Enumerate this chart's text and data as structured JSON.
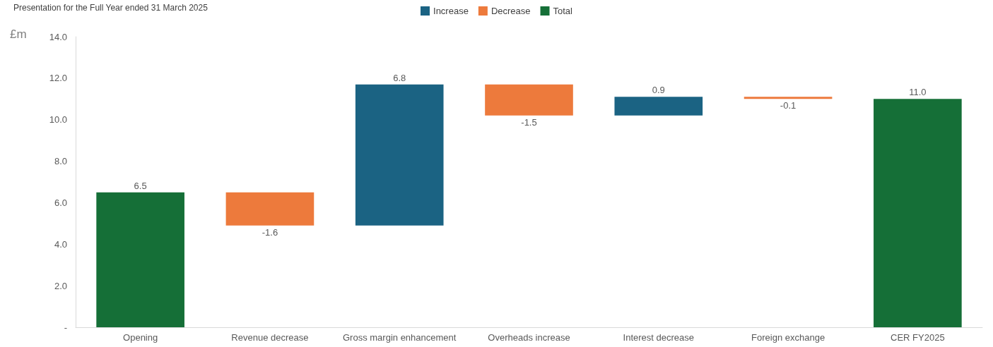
{
  "chart_data": {
    "type": "bar",
    "title": "Presentation for the Full Year ended 31 March 2025",
    "ylabel": "£m",
    "categories": [
      "Opening",
      "Revenue decrease",
      "Gross margin enhancement",
      "Overheads increase",
      "Interest decrease",
      "Foreign exchange",
      "CER FY2025"
    ],
    "series": [
      {
        "name": "Increase",
        "color": "#1b6383",
        "values": [
          null,
          null,
          6.8,
          null,
          0.9,
          null,
          null
        ],
        "base": [
          null,
          null,
          4.9,
          null,
          10.2,
          null,
          null
        ],
        "value_labels": [
          null,
          null,
          "6.8",
          null,
          "0.9",
          null,
          null
        ]
      },
      {
        "name": "Decrease",
        "color": "#ed7a3c",
        "values": [
          null,
          -1.6,
          null,
          -1.5,
          null,
          -0.1,
          null
        ],
        "base": [
          null,
          6.5,
          null,
          11.7,
          null,
          11.1,
          null
        ],
        "value_labels": [
          null,
          "-1.6",
          null,
          "-1.5",
          null,
          "-0.1",
          null
        ]
      },
      {
        "name": "Total",
        "color": "#156f37",
        "values": [
          6.5,
          null,
          null,
          null,
          null,
          null,
          11.0
        ],
        "base": [
          0,
          null,
          null,
          null,
          null,
          null,
          0
        ],
        "value_labels": [
          "6.5",
          null,
          null,
          null,
          null,
          null,
          "11.0"
        ]
      }
    ],
    "ylim": [
      0,
      14
    ],
    "yticks": [
      {
        "value": 0,
        "label": "-"
      },
      {
        "value": 2,
        "label": "2.0"
      },
      {
        "value": 4,
        "label": "4.0"
      },
      {
        "value": 6,
        "label": "6.0"
      },
      {
        "value": 8,
        "label": "8.0"
      },
      {
        "value": 10,
        "label": "10.0"
      },
      {
        "value": 12,
        "label": "12.0"
      },
      {
        "value": 14,
        "label": "14.0"
      }
    ],
    "grid": false,
    "legend": "top"
  }
}
